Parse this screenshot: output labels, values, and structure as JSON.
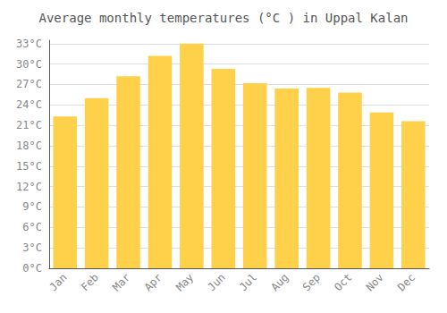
{
  "chart_data": {
    "type": "bar",
    "title": "Average monthly temperatures (°C ) in Uppal Kalan",
    "categories": [
      "Jan",
      "Feb",
      "Mar",
      "Apr",
      "May",
      "Jun",
      "Jul",
      "Aug",
      "Sep",
      "Oct",
      "Nov",
      "Dec"
    ],
    "values": [
      22.3,
      25.0,
      28.2,
      31.2,
      33.0,
      29.3,
      27.2,
      26.4,
      26.5,
      25.8,
      22.9,
      21.6
    ],
    "color": "#FFD04A",
    "ylim": [
      0,
      33.5
    ],
    "yticks": [
      {
        "value": 0,
        "label": "0°C"
      },
      {
        "value": 3,
        "label": "3°C"
      },
      {
        "value": 6,
        "label": "6°C"
      },
      {
        "value": 9,
        "label": "9°C"
      },
      {
        "value": 12,
        "label": "12°C"
      },
      {
        "value": 15,
        "label": "15°C"
      },
      {
        "value": 18,
        "label": "18°C"
      },
      {
        "value": 21,
        "label": "21°C"
      },
      {
        "value": 24,
        "label": "24°C"
      },
      {
        "value": 27,
        "label": "27°C"
      },
      {
        "value": 30,
        "label": "30°C"
      },
      {
        "value": 33,
        "label": "33°C"
      }
    ],
    "grid": true
  }
}
